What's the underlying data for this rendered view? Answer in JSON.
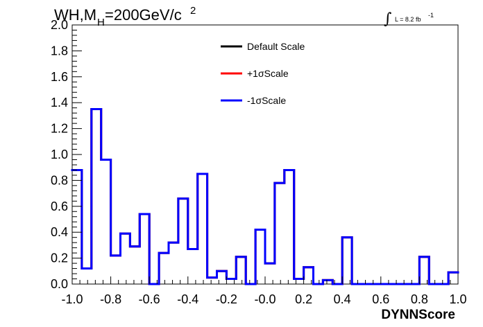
{
  "chart_data": {
    "type": "step",
    "title": {
      "prefix": "WH,M",
      "subscript": "H",
      "suffix": "=200GeV/c",
      "superscript": "2"
    },
    "lumi": {
      "symbol": "∫",
      "text": "L = 8.2 fb",
      "superscript": "-1"
    },
    "xlabel": "DYNNScore",
    "xlim": [
      -1.0,
      1.0
    ],
    "ylim": [
      0.0,
      2.0
    ],
    "x_ticks": [
      -1.0,
      -0.8,
      -0.6,
      -0.4,
      -0.2,
      0.0,
      0.2,
      0.4,
      0.6,
      0.8,
      1.0
    ],
    "x_tick_labels": [
      "-1.0",
      "-0.8",
      "-0.6",
      "-0.4",
      "-0.2",
      "-0.0",
      "0.2",
      "0.4",
      "0.6",
      "0.8",
      "1.0"
    ],
    "y_ticks": [
      0.0,
      0.2,
      0.4,
      0.6,
      0.8,
      1.0,
      1.2,
      1.4,
      1.6,
      1.8,
      2.0
    ],
    "y_tick_labels": [
      "0.0",
      "0.2",
      "0.4",
      "0.6",
      "0.8",
      "1.0",
      "1.2",
      "1.4",
      "1.6",
      "1.8",
      "2.0"
    ],
    "bin_edges": [
      -1.0,
      -0.95,
      -0.9,
      -0.85,
      -0.8,
      -0.75,
      -0.7,
      -0.65,
      -0.6,
      -0.55,
      -0.5,
      -0.45,
      -0.4,
      -0.35,
      -0.3,
      -0.25,
      -0.2,
      -0.15,
      -0.1,
      -0.05,
      0.0,
      0.05,
      0.1,
      0.15,
      0.2,
      0.25,
      0.3,
      0.35,
      0.4,
      0.45,
      0.5,
      0.55,
      0.6,
      0.65,
      0.7,
      0.75,
      0.8,
      0.85,
      0.9,
      0.95,
      1.0
    ],
    "series": [
      {
        "name": "Default Scale",
        "color": "#000000",
        "values": [
          0.88,
          0.12,
          1.35,
          0.96,
          0.22,
          0.39,
          0.29,
          0.54,
          0.0,
          0.24,
          0.32,
          0.66,
          0.27,
          0.85,
          0.05,
          0.1,
          0.04,
          0.21,
          0.0,
          0.42,
          0.16,
          0.78,
          0.88,
          0.04,
          0.13,
          0.0,
          0.03,
          0.0,
          0.36,
          0.0,
          0.0,
          0.0,
          0.0,
          0.0,
          0.0,
          0.0,
          0.21,
          0.0,
          0.0,
          0.09
        ]
      },
      {
        "name": "+1σScale",
        "color": "#ff0000",
        "values": [
          0.88,
          0.12,
          1.35,
          0.96,
          0.22,
          0.39,
          0.29,
          0.54,
          0.0,
          0.24,
          0.32,
          0.66,
          0.27,
          0.85,
          0.05,
          0.1,
          0.04,
          0.21,
          0.0,
          0.42,
          0.16,
          0.78,
          0.88,
          0.04,
          0.13,
          0.0,
          0.03,
          0.0,
          0.36,
          0.0,
          0.0,
          0.0,
          0.0,
          0.0,
          0.0,
          0.0,
          0.21,
          0.0,
          0.0,
          0.09
        ]
      },
      {
        "name": "-1σScale",
        "color": "#0000ff",
        "values": [
          0.88,
          0.12,
          1.35,
          0.96,
          0.22,
          0.39,
          0.29,
          0.54,
          0.0,
          0.24,
          0.32,
          0.66,
          0.27,
          0.85,
          0.05,
          0.1,
          0.04,
          0.21,
          0.0,
          0.42,
          0.16,
          0.78,
          0.88,
          0.04,
          0.13,
          0.0,
          0.03,
          0.0,
          0.36,
          0.0,
          0.0,
          0.0,
          0.0,
          0.0,
          0.0,
          0.0,
          0.21,
          0.0,
          0.0,
          0.09
        ]
      }
    ],
    "legend_position": "top-center",
    "grid": false
  }
}
